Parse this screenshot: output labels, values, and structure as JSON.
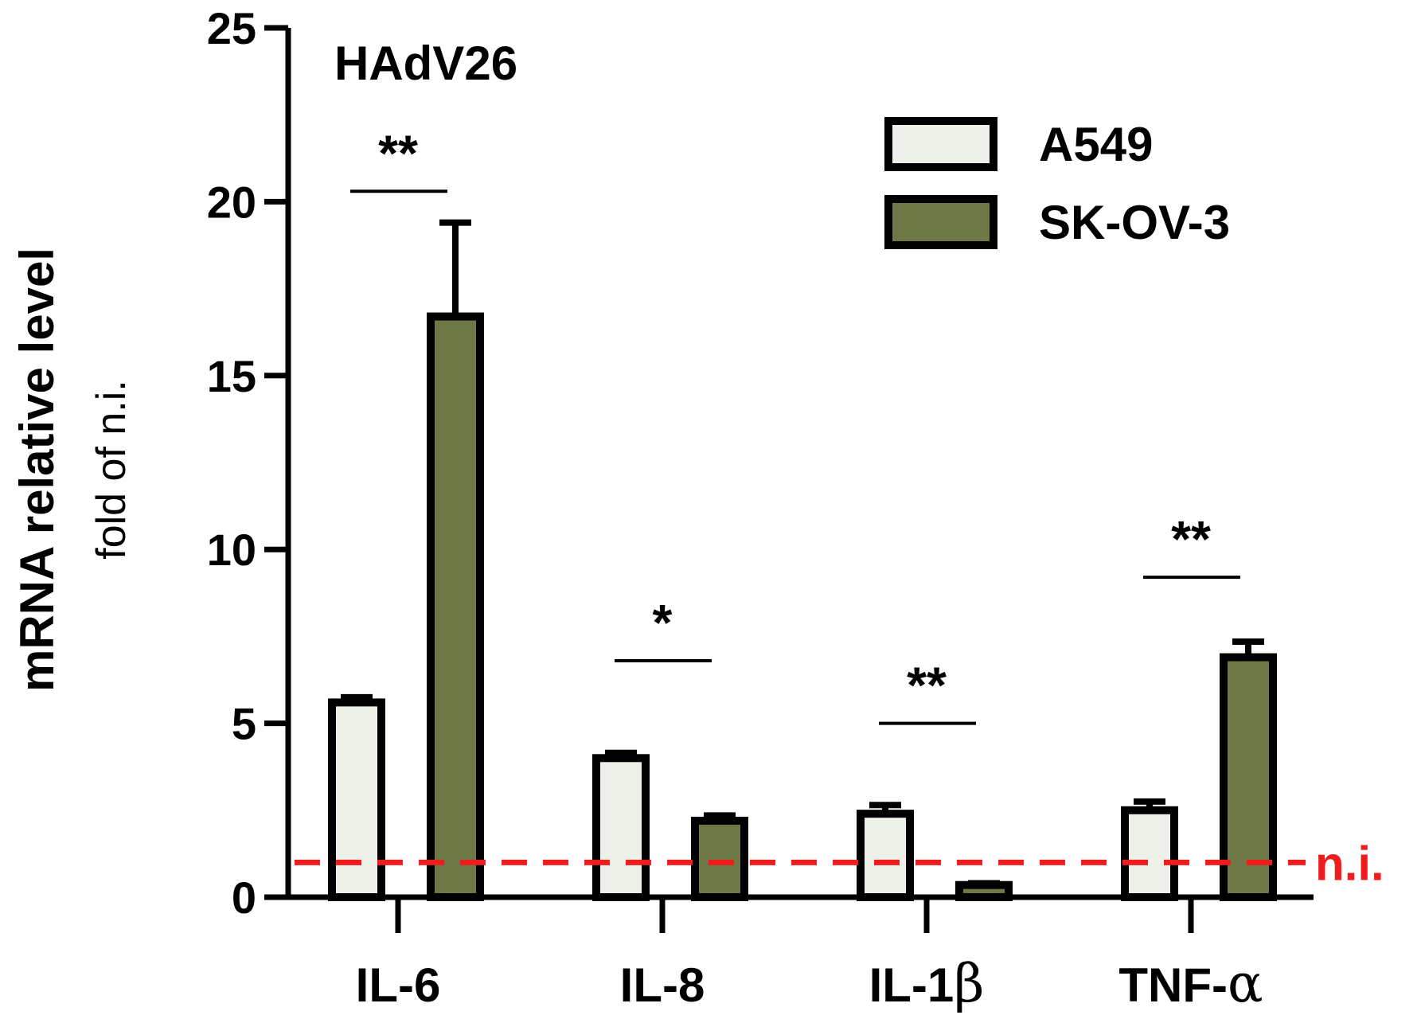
{
  "chart_data": {
    "type": "bar",
    "title": "HAdV26",
    "ylabel": "mRNA relative level",
    "ylabel_sub": "fold of n.i.",
    "xlabel": "",
    "ylim": [
      0,
      25
    ],
    "yticks": [
      0,
      5,
      10,
      15,
      20,
      25
    ],
    "grid": false,
    "legend_position": "top-right",
    "categories": [
      {
        "prefix": "IL-6",
        "greek": ""
      },
      {
        "prefix": "IL-8",
        "greek": ""
      },
      {
        "prefix": "IL-1",
        "greek": "β"
      },
      {
        "prefix": "TNF-",
        "greek": "α"
      }
    ],
    "series": [
      {
        "name": "A549",
        "color": "#eef0ea",
        "values": [
          5.6,
          4.0,
          2.4,
          2.5
        ],
        "errors": [
          0.15,
          0.15,
          0.25,
          0.25
        ]
      },
      {
        "name": "SK-OV-3",
        "color": "#6e7746",
        "values": [
          16.7,
          2.2,
          0.35,
          6.9
        ],
        "errors": [
          2.7,
          0.15,
          0.05,
          0.45
        ]
      }
    ],
    "significance": [
      {
        "label": "**",
        "y": 20.3
      },
      {
        "label": "*",
        "y": 6.8
      },
      {
        "label": "**",
        "y": 5.0
      },
      {
        "label": "**",
        "y": 9.2
      }
    ],
    "reference_line": {
      "value": 1,
      "label": "n.i.",
      "color": "#ee1c1c"
    }
  }
}
